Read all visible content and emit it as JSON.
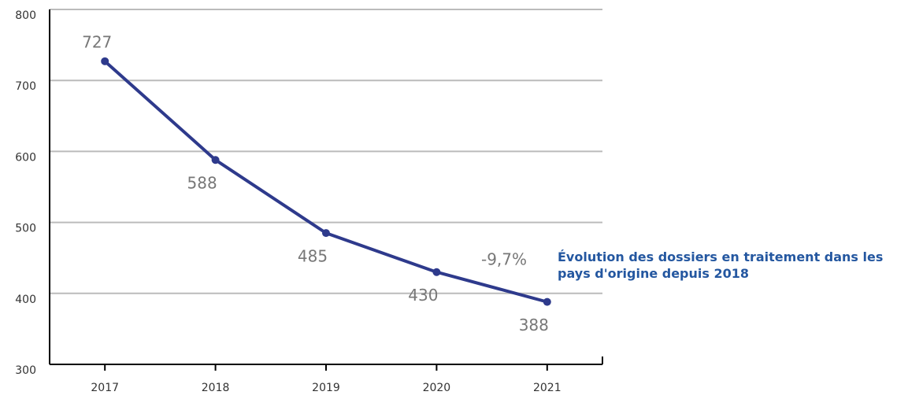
{
  "chart_data": {
    "type": "line",
    "title": "Évolution des dossiers en traitement dans les pays d'origine depuis 2018",
    "annotations": [
      {
        "text": "-9,7%"
      }
    ],
    "categories": [
      "2017",
      "2018",
      "2019",
      "2020",
      "2021"
    ],
    "series": [
      {
        "color": "#2e3a8c",
        "values": [
          727,
          588,
          485,
          430,
          388
        ]
      }
    ],
    "ylim": [
      300,
      800
    ],
    "yticks": [
      300,
      400,
      500,
      600,
      700,
      800
    ],
    "grid": true
  }
}
